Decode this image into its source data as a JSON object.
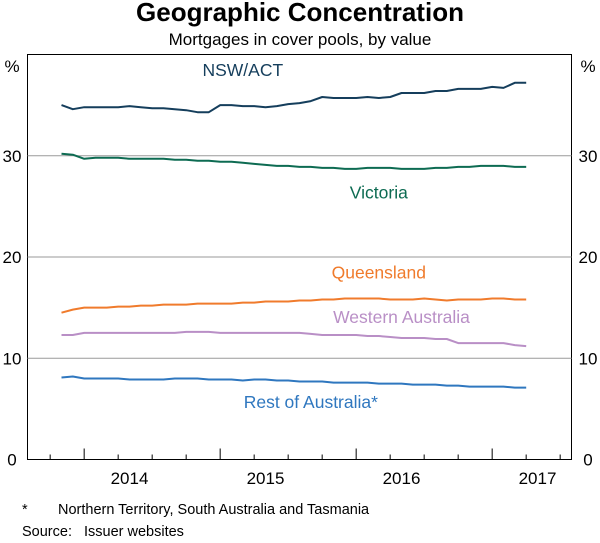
{
  "title": "Geographic Concentration",
  "subtitle": "Mortgages in cover pools, by value",
  "footnotes": {
    "asterisk_marker": "*",
    "asterisk_text": "Northern Territory, South Australia and Tasmania",
    "source_label": "Source:",
    "source_text": "Issuer websites"
  },
  "chart_data": {
    "type": "line",
    "title": "Geographic Concentration",
    "subtitle": "Mortgages in cover pools, by value",
    "y_unit_left": "%",
    "y_unit_right": "%",
    "ylim": [
      0,
      40
    ],
    "y_ticks": [
      0,
      10,
      20,
      30
    ],
    "xlim": [
      "2013-08",
      "2017-08"
    ],
    "x_ticks": [
      "2014",
      "2015",
      "2016",
      "2017"
    ],
    "grid": true,
    "colors": {
      "NSW/ACT": "#153e5c",
      "Victoria": "#0d6b52",
      "Queensland": "#f07b2c",
      "Western Australia": "#b98fc6",
      "Rest of Australia*": "#2f77bf"
    },
    "x": [
      "2013-11",
      "2013-12",
      "2014-01",
      "2014-02",
      "2014-03",
      "2014-04",
      "2014-05",
      "2014-06",
      "2014-07",
      "2014-08",
      "2014-09",
      "2014-10",
      "2014-11",
      "2014-12",
      "2015-01",
      "2015-02",
      "2015-03",
      "2015-04",
      "2015-05",
      "2015-06",
      "2015-07",
      "2015-08",
      "2015-09",
      "2015-10",
      "2015-11",
      "2015-12",
      "2016-01",
      "2016-02",
      "2016-03",
      "2016-04",
      "2016-05",
      "2016-06",
      "2016-07",
      "2016-08",
      "2016-09",
      "2016-10",
      "2016-11",
      "2016-12",
      "2017-01",
      "2017-02",
      "2017-03",
      "2017-04"
    ],
    "series": [
      {
        "name": "NSW/ACT",
        "values": [
          35.0,
          34.6,
          34.8,
          34.8,
          34.8,
          34.8,
          34.9,
          34.8,
          34.7,
          34.7,
          34.6,
          34.5,
          34.3,
          34.3,
          35.0,
          35.0,
          34.9,
          34.9,
          34.8,
          34.9,
          35.1,
          35.2,
          35.4,
          35.8,
          35.7,
          35.7,
          35.7,
          35.8,
          35.7,
          35.8,
          36.2,
          36.2,
          36.2,
          36.4,
          36.4,
          36.6,
          36.6,
          36.6,
          36.8,
          36.7,
          37.2,
          37.2
        ]
      },
      {
        "name": "Victoria",
        "values": [
          30.2,
          30.1,
          29.7,
          29.8,
          29.8,
          29.8,
          29.7,
          29.7,
          29.7,
          29.7,
          29.6,
          29.6,
          29.5,
          29.5,
          29.4,
          29.4,
          29.3,
          29.2,
          29.1,
          29.0,
          29.0,
          28.9,
          28.9,
          28.8,
          28.8,
          28.7,
          28.7,
          28.8,
          28.8,
          28.8,
          28.7,
          28.7,
          28.7,
          28.8,
          28.8,
          28.9,
          28.9,
          29.0,
          29.0,
          29.0,
          28.9,
          28.9
        ]
      },
      {
        "name": "Queensland",
        "values": [
          14.5,
          14.8,
          15.0,
          15.0,
          15.0,
          15.1,
          15.1,
          15.2,
          15.2,
          15.3,
          15.3,
          15.3,
          15.4,
          15.4,
          15.4,
          15.4,
          15.5,
          15.5,
          15.6,
          15.6,
          15.6,
          15.7,
          15.7,
          15.8,
          15.8,
          15.9,
          15.9,
          15.9,
          15.9,
          15.8,
          15.8,
          15.8,
          15.9,
          15.8,
          15.7,
          15.8,
          15.8,
          15.8,
          15.9,
          15.9,
          15.8,
          15.8
        ]
      },
      {
        "name": "Western Australia",
        "values": [
          12.3,
          12.3,
          12.5,
          12.5,
          12.5,
          12.5,
          12.5,
          12.5,
          12.5,
          12.5,
          12.5,
          12.6,
          12.6,
          12.6,
          12.5,
          12.5,
          12.5,
          12.5,
          12.5,
          12.5,
          12.5,
          12.5,
          12.4,
          12.3,
          12.3,
          12.3,
          12.3,
          12.2,
          12.2,
          12.1,
          12.0,
          12.0,
          12.0,
          11.9,
          11.9,
          11.5,
          11.5,
          11.5,
          11.5,
          11.5,
          11.3,
          11.2
        ]
      },
      {
        "name": "Rest of Australia*",
        "values": [
          8.1,
          8.2,
          8.0,
          8.0,
          8.0,
          8.0,
          7.9,
          7.9,
          7.9,
          7.9,
          8.0,
          8.0,
          8.0,
          7.9,
          7.9,
          7.9,
          7.8,
          7.9,
          7.9,
          7.8,
          7.8,
          7.7,
          7.7,
          7.7,
          7.6,
          7.6,
          7.6,
          7.6,
          7.5,
          7.5,
          7.5,
          7.4,
          7.4,
          7.4,
          7.3,
          7.3,
          7.2,
          7.2,
          7.2,
          7.2,
          7.1,
          7.1
        ]
      }
    ]
  }
}
